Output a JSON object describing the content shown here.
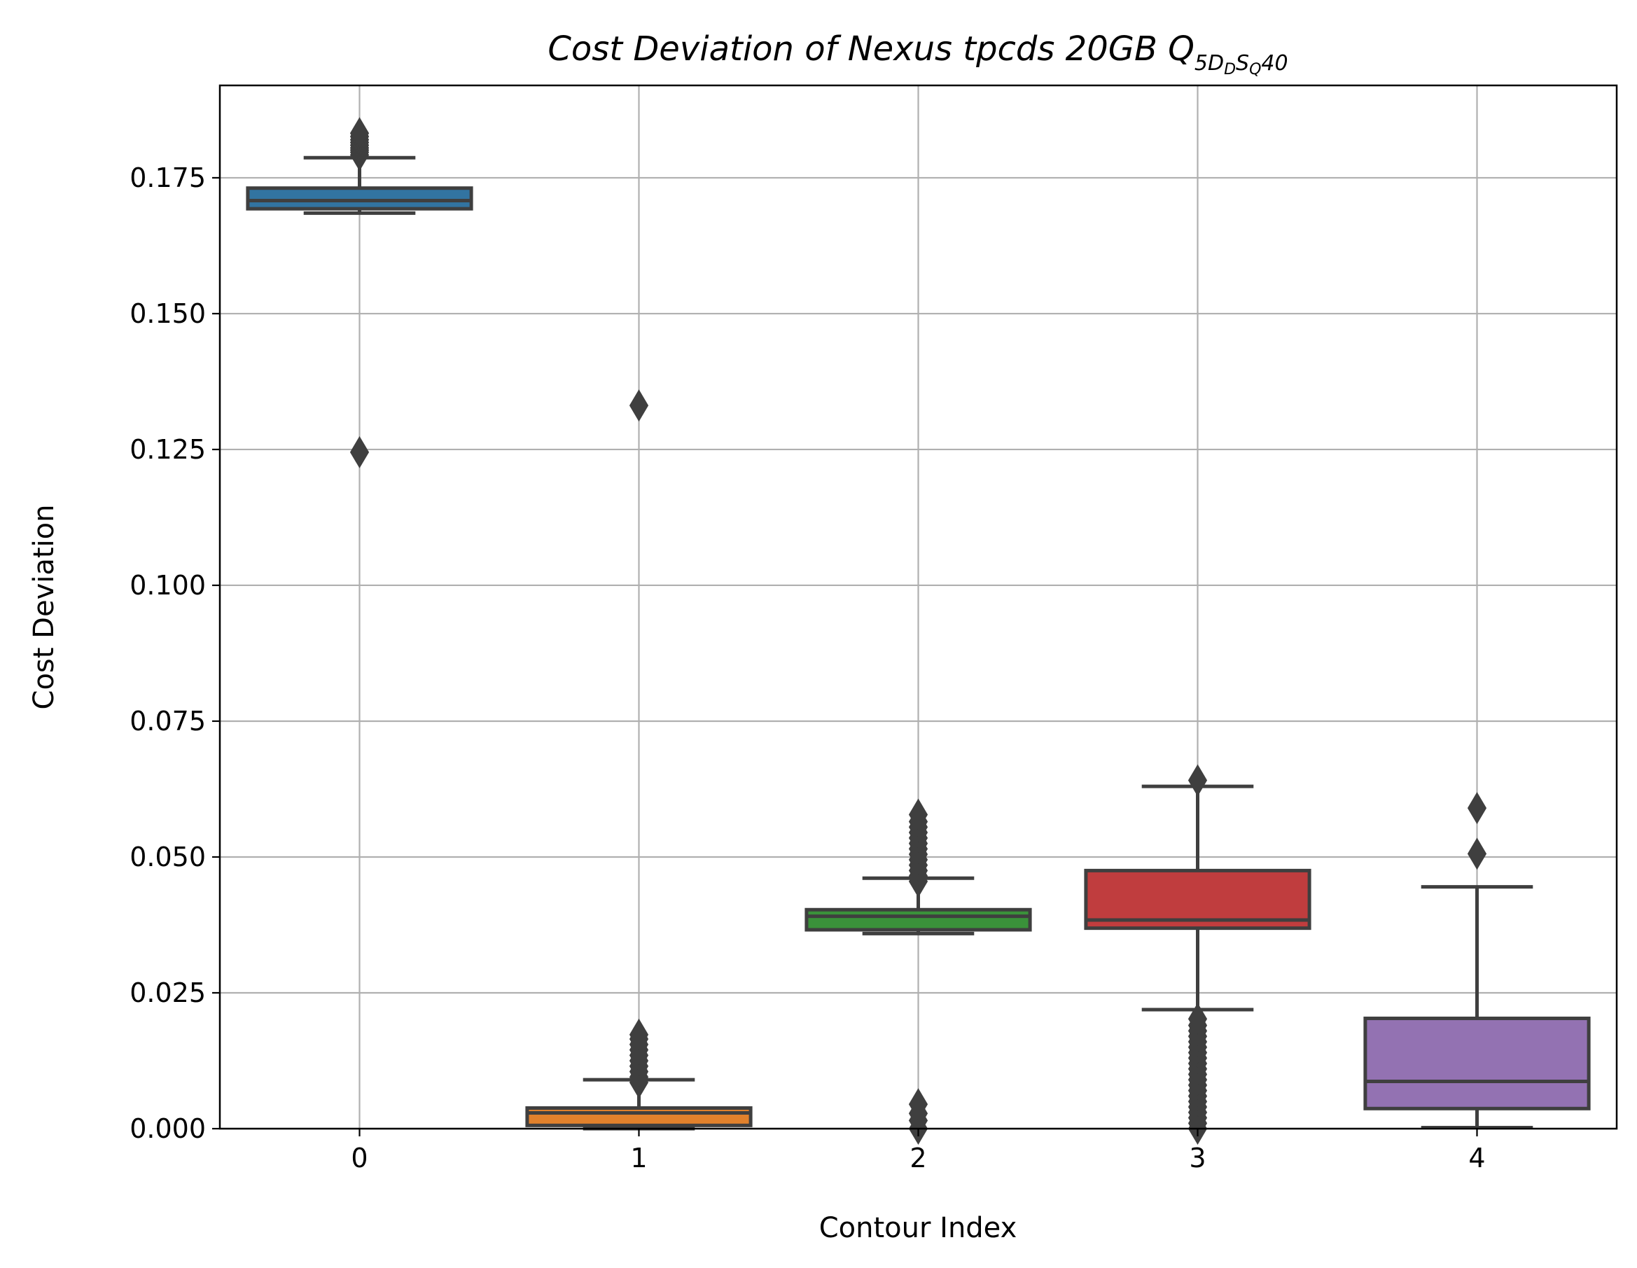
{
  "chart_data": {
    "type": "box",
    "title": {
      "main": "Cost Deviation of Nexus tpcds  20GB  Q",
      "sub1": "5D",
      "sub2": "D",
      "sub3": "S",
      "sub4": "Q",
      "tail": "40"
    },
    "xlabel": "Contour Index",
    "ylabel": "Cost Deviation",
    "ylim": [
      0,
      0.192
    ],
    "xlim": [
      -0.5,
      4.5
    ],
    "grid": true,
    "yticks": [
      0.0,
      0.025,
      0.05,
      0.075,
      0.1,
      0.125,
      0.15,
      0.175
    ],
    "ytick_labels": [
      "0.000",
      "0.025",
      "0.050",
      "0.075",
      "0.100",
      "0.125",
      "0.150",
      "0.175"
    ],
    "categories": [
      "0",
      "1",
      "2",
      "3",
      "4"
    ],
    "series": [
      {
        "category": "0",
        "color": "#3274a1",
        "q1": 0.1693,
        "median": 0.1708,
        "q3": 0.1731,
        "whisker_low": 0.1685,
        "whisker_high": 0.1787,
        "outliers": [
          0.1245,
          0.1792,
          0.1797,
          0.1801,
          0.1805,
          0.181,
          0.1815,
          0.182,
          0.1826,
          0.1832
        ]
      },
      {
        "category": "1",
        "color": "#e1812c",
        "q1": 0.0006,
        "median": 0.0029,
        "q3": 0.0038,
        "whisker_low": 0.0,
        "whisker_high": 0.009,
        "outliers": [
          0.0085,
          0.0095,
          0.0105,
          0.0115,
          0.0125,
          0.0135,
          0.0145,
          0.0155,
          0.0165,
          0.0173,
          0.1331
        ]
      },
      {
        "category": "2",
        "color": "#3a923a",
        "q1": 0.0366,
        "median": 0.0391,
        "q3": 0.0403,
        "whisker_low": 0.0359,
        "whisker_high": 0.0461,
        "outliers": [
          0.0,
          0.0015,
          0.0028,
          0.0045,
          0.0455,
          0.0465,
          0.0475,
          0.0485,
          0.0495,
          0.0505,
          0.0515,
          0.0525,
          0.0535,
          0.0545,
          0.0555,
          0.0565,
          0.0578
        ]
      },
      {
        "category": "3",
        "color": "#c03d3e",
        "q1": 0.0369,
        "median": 0.0384,
        "q3": 0.0475,
        "whisker_low": 0.0219,
        "whisker_high": 0.063,
        "outliers": [
          0.0,
          0.001,
          0.002,
          0.003,
          0.004,
          0.005,
          0.006,
          0.007,
          0.008,
          0.009,
          0.01,
          0.011,
          0.012,
          0.013,
          0.014,
          0.015,
          0.016,
          0.017,
          0.018,
          0.019,
          0.0202,
          0.0641
        ]
      },
      {
        "category": "4",
        "color": "#9372b2",
        "q1": 0.0037,
        "median": 0.0087,
        "q3": 0.0203,
        "whisker_low": 0.0002,
        "whisker_high": 0.0445,
        "outliers": [
          0.0506,
          0.059
        ]
      }
    ]
  }
}
